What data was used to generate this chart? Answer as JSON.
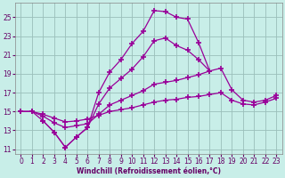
{
  "xlabel": "Windchill (Refroidissement éolien,°C)",
  "background_color": "#c8eee8",
  "grid_color": "#9abfba",
  "line_color": "#990099",
  "xlim": [
    -0.5,
    23.5
  ],
  "ylim": [
    10.5,
    26.5
  ],
  "yticks": [
    11,
    13,
    15,
    17,
    19,
    21,
    23,
    25
  ],
  "xticks": [
    0,
    1,
    2,
    3,
    4,
    5,
    6,
    7,
    8,
    9,
    10,
    11,
    12,
    13,
    14,
    15,
    16,
    17,
    18,
    19,
    20,
    21,
    22,
    23
  ],
  "series": [
    {
      "x": [
        0,
        1,
        2,
        3,
        4,
        5,
        6,
        7,
        8,
        9,
        10,
        11,
        12,
        13,
        14,
        15,
        16,
        17
      ],
      "y": [
        15,
        15,
        14.0,
        12.8,
        11.2,
        12.3,
        13.3,
        17.0,
        19.2,
        20.5,
        22.2,
        23.5,
        25.7,
        25.6,
        25.0,
        24.8,
        22.3,
        19.3
      ]
    },
    {
      "x": [
        0,
        1,
        2,
        3,
        4,
        5,
        6,
        7,
        8,
        9,
        10,
        11,
        12,
        13,
        14,
        15,
        16,
        17,
        18,
        19,
        20,
        21,
        22,
        23
      ],
      "y": [
        15,
        15,
        14.5,
        13.8,
        13.3,
        13.5,
        13.7,
        14.7,
        15.7,
        16.2,
        16.7,
        17.2,
        17.9,
        18.1,
        18.3,
        18.6,
        18.9,
        19.3,
        19.6,
        17.3,
        16.2,
        16.0,
        16.2,
        16.7
      ]
    },
    {
      "x": [
        0,
        1,
        2,
        3,
        4,
        5,
        6,
        7,
        8,
        9,
        10,
        11,
        12,
        13,
        14,
        15,
        16,
        17,
        18,
        19,
        20,
        21,
        22,
        23
      ],
      "y": [
        15,
        15,
        14.7,
        14.3,
        13.9,
        14.0,
        14.2,
        14.6,
        15.0,
        15.2,
        15.4,
        15.7,
        16.0,
        16.2,
        16.3,
        16.5,
        16.6,
        16.8,
        17.0,
        16.2,
        15.8,
        15.7,
        16.0,
        16.4
      ]
    },
    {
      "x": [
        2,
        3,
        4,
        5,
        6,
        7,
        8,
        9,
        10,
        11,
        12,
        13,
        14,
        15,
        16,
        17
      ],
      "y": [
        14.0,
        12.8,
        11.2,
        12.3,
        13.3,
        15.8,
        17.5,
        18.5,
        19.5,
        20.8,
        22.5,
        22.8,
        22.0,
        21.5,
        20.5,
        19.3
      ]
    }
  ]
}
